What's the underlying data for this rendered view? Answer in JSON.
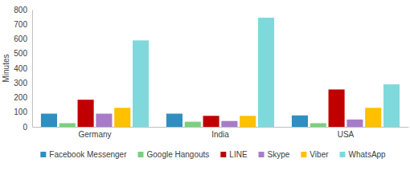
{
  "chart_data": {
    "type": "bar",
    "y_label": "Minutes",
    "categories": [
      "Germany",
      "India",
      "USA"
    ],
    "series": [
      {
        "name": "Facebook Messenger",
        "color": "#2e8fc0",
        "values": [
          90,
          90,
          78
        ]
      },
      {
        "name": "Google Hangouts",
        "color": "#7ccf7e",
        "values": [
          25,
          35,
          25
        ]
      },
      {
        "name": "LINE",
        "color": "#c00000",
        "values": [
          185,
          75,
          255
        ]
      },
      {
        "name": "Skype",
        "color": "#a87bc9",
        "values": [
          90,
          40,
          50
        ]
      },
      {
        "name": "Viber",
        "color": "#ffc000",
        "values": [
          130,
          75,
          130
        ]
      },
      {
        "name": "WhatsApp",
        "color": "#7fd9dc",
        "values": [
          590,
          745,
          290
        ]
      }
    ],
    "ylim": [
      0,
      800
    ],
    "yticks": [
      0,
      100,
      200,
      300,
      400,
      500,
      600,
      700,
      800
    ],
    "grid": false,
    "legend": "bottom"
  }
}
